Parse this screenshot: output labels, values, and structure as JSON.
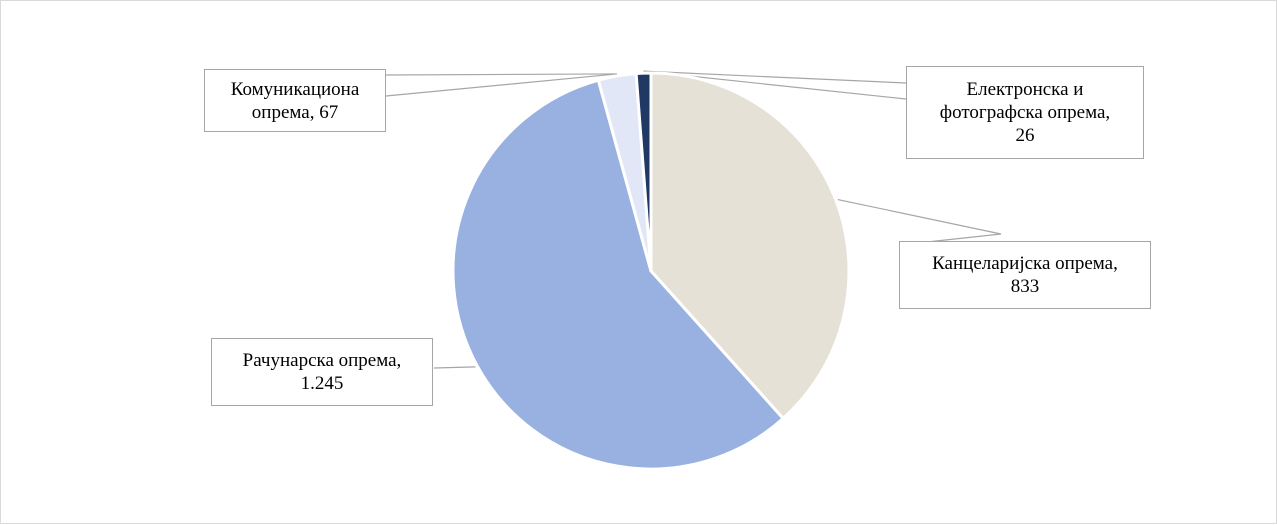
{
  "chart_data": {
    "type": "pie",
    "title": "",
    "start_angle_deg": 0,
    "direction": "clockwise",
    "slices": [
      {
        "name": "Канцеларијска опрема",
        "value": 833,
        "value_label": "833",
        "label_lines": [
          "Канцеларијска опрема,",
          "833"
        ],
        "color": "#E6E1D6"
      },
      {
        "name": "Рачунарска опрема",
        "value": 1245,
        "value_label": "1.245",
        "label_lines": [
          "Рачунарска опрема,",
          "1.245"
        ],
        "color": "#98B1E0"
      },
      {
        "name": "Комуникациона опрема",
        "value": 67,
        "value_label": "67",
        "label_lines": [
          "Комуникациона",
          "опрема, 67"
        ],
        "color": "#E1E7F6"
      },
      {
        "name": "Електронска и фотографска опрема",
        "value": 26,
        "value_label": "26",
        "label_lines": [
          "Електронска и",
          "фотографска опрема,",
          "26"
        ],
        "color": "#1F3864"
      }
    ],
    "slice_border_color": "#FFFFFF",
    "leader_line_color": "#A6A6A6",
    "legend": "none"
  }
}
